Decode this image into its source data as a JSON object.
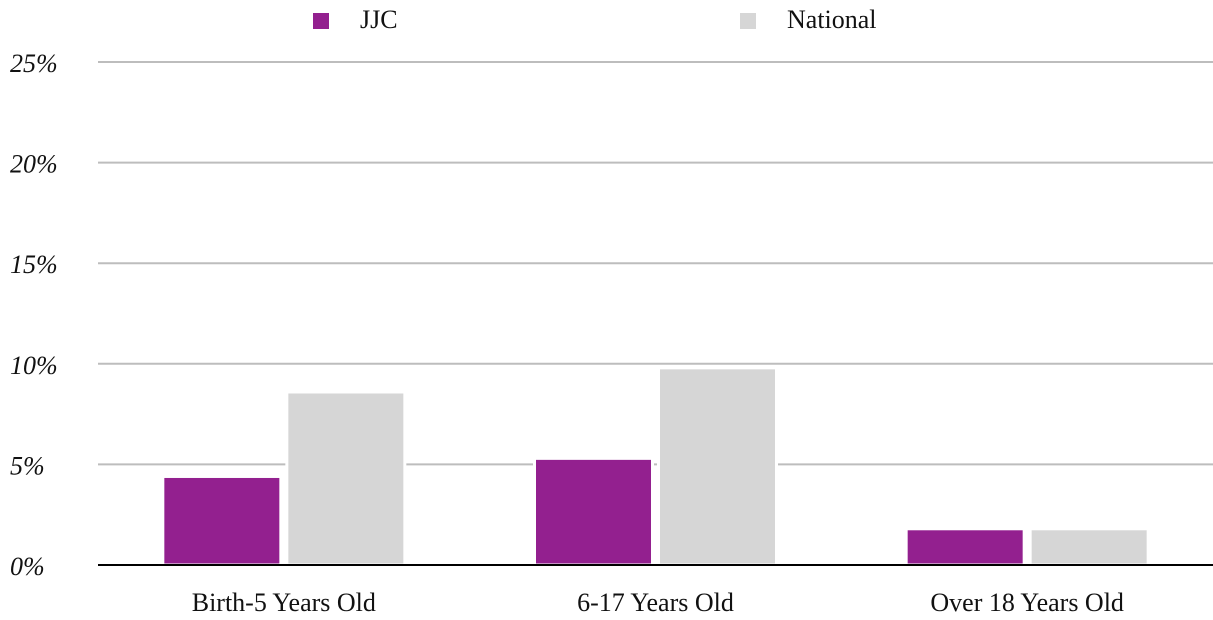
{
  "chart_data": {
    "type": "bar",
    "categories": [
      "Birth-5 Years Old",
      "6-17 Years Old",
      "Over 18 Years Old"
    ],
    "series": [
      {
        "name": "JJC",
        "color": "#93208f",
        "values": [
          4.4,
          5.3,
          1.8
        ]
      },
      {
        "name": "National",
        "color": "#d6d6d6",
        "values": [
          8.6,
          9.8,
          1.8
        ]
      }
    ],
    "ylim": [
      0,
      25
    ],
    "yticks": [
      {
        "value": 0,
        "label": "0%"
      },
      {
        "value": 5,
        "label": "5%"
      },
      {
        "value": 10,
        "label": "10%"
      },
      {
        "value": 15,
        "label": "15%"
      },
      {
        "value": 20,
        "label": "20%"
      },
      {
        "value": 25,
        "label": "25%"
      }
    ],
    "grid": true,
    "legend": "top"
  }
}
